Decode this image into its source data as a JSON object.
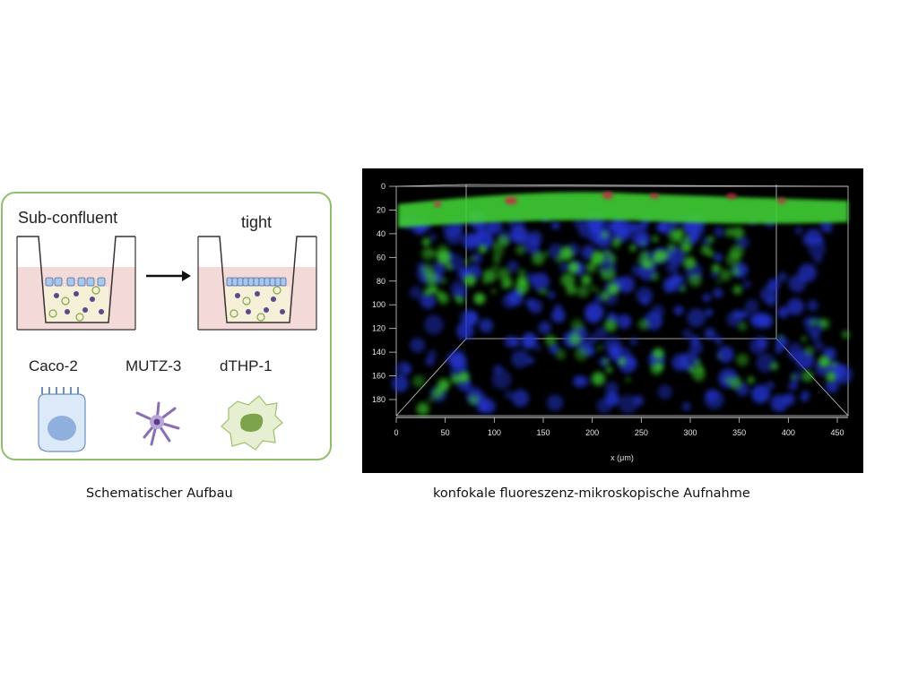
{
  "schematic": {
    "label_left": "Sub-confluent",
    "label_right": "tight",
    "cell_types": [
      "Caco-2",
      "MUTZ-3",
      "dTHP-1"
    ],
    "colors": {
      "border": "#8fbf6b",
      "medium": "#f4d9d9",
      "gel": "#f6f0d8",
      "epithelial": "#a9c7ea",
      "dendritic": "#8a6fb5",
      "macrophage": "#9cc26b"
    }
  },
  "micrograph": {
    "x_axis_label": "x (μm)",
    "x_ticks": [
      "0",
      "50",
      "100",
      "150",
      "200",
      "250",
      "300",
      "350",
      "400",
      "450"
    ],
    "y_ticks": [
      "0",
      "20",
      "40",
      "60",
      "80",
      "100",
      "120",
      "140",
      "160",
      "180"
    ],
    "channels": {
      "green": "#39c42a",
      "blue": "#2233cc",
      "red": "#d0204a"
    }
  },
  "captions": {
    "left": "Schematischer Aufbau",
    "right": "konfokale fluoreszenz-mikroskopische Aufnahme"
  }
}
